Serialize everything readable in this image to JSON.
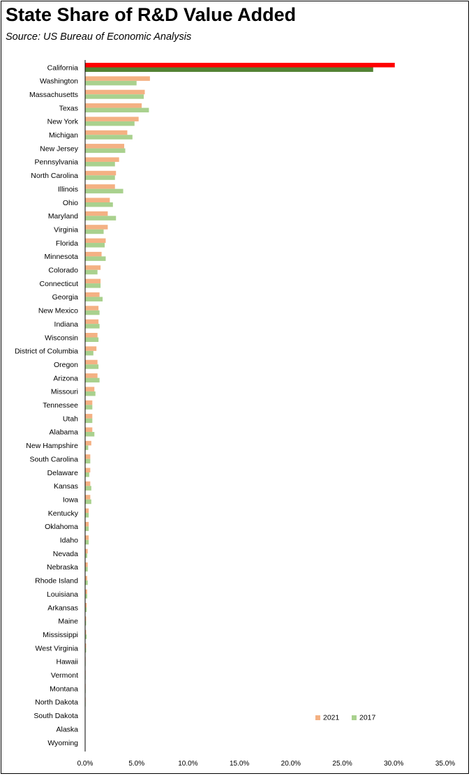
{
  "colors": {
    "s2021": "#f4b183",
    "s2017": "#a9d18e",
    "ca2021": "#ff0000",
    "ca2017": "#548235",
    "axis": "#000000"
  },
  "chart_data": {
    "type": "bar",
    "orientation": "horizontal",
    "title": "State Share of R&D Value Added",
    "subtitle": "Source:  US Bureau of Economic Analysis",
    "xlim": [
      0,
      35
    ],
    "x_ticks": [
      "0.0%",
      "5.0%",
      "10.0%",
      "15.0%",
      "20.0%",
      "25.0%",
      "30.0%",
      "35.0%"
    ],
    "x_tick_values": [
      0,
      5,
      10,
      15,
      20,
      25,
      30,
      35
    ],
    "grid": false,
    "legend_position": "bottom-right",
    "categories": [
      "California",
      "Washington",
      "Massachusetts",
      "Texas",
      "New York",
      "Michigan",
      "New Jersey",
      "Pennsylvania",
      "North Carolina",
      "Illinois",
      "Ohio",
      "Maryland",
      "Virginia",
      "Florida",
      "Minnesota",
      "Colorado",
      "Connecticut",
      "Georgia",
      "New Mexico",
      "Indiana",
      "Wisconsin",
      "District of Columbia",
      "Oregon",
      "Arizona",
      "Missouri",
      "Tennessee",
      "Utah",
      "Alabama",
      "New Hampshire",
      "South Carolina",
      "Delaware",
      "Kansas",
      "Iowa",
      "Kentucky",
      "Oklahoma",
      "Idaho",
      "Nevada",
      "Nebraska",
      "Rhode Island",
      "Louisiana",
      "Arkansas",
      "Maine",
      "Mississippi",
      "West Virginia",
      "Hawaii",
      "Vermont",
      "Montana",
      "North Dakota",
      "South Dakota",
      "Alaska",
      "Wyoming"
    ],
    "series": [
      {
        "name": "2021",
        "values": [
          30.1,
          6.3,
          5.8,
          5.5,
          5.2,
          4.1,
          3.8,
          3.3,
          3.0,
          2.9,
          2.4,
          2.2,
          2.2,
          2.0,
          1.6,
          1.5,
          1.5,
          1.4,
          1.3,
          1.3,
          1.2,
          1.1,
          1.2,
          1.2,
          0.9,
          0.7,
          0.7,
          0.7,
          0.6,
          0.5,
          0.5,
          0.5,
          0.5,
          0.35,
          0.35,
          0.35,
          0.25,
          0.25,
          0.2,
          0.2,
          0.15,
          0.1,
          0.1,
          0.1,
          0.05,
          0.05,
          0.05,
          0.05,
          0.03,
          0.03,
          0.03
        ]
      },
      {
        "name": "2017",
        "values": [
          28.0,
          5.0,
          5.7,
          6.2,
          4.8,
          4.6,
          3.9,
          2.9,
          2.9,
          3.7,
          2.7,
          3.0,
          1.8,
          1.9,
          2.0,
          1.2,
          1.5,
          1.7,
          1.4,
          1.4,
          1.3,
          0.8,
          1.3,
          1.4,
          1.0,
          0.7,
          0.7,
          0.9,
          0.3,
          0.5,
          0.4,
          0.6,
          0.6,
          0.35,
          0.35,
          0.35,
          0.2,
          0.25,
          0.25,
          0.2,
          0.15,
          0.1,
          0.15,
          0.1,
          0.05,
          0.05,
          0.05,
          0.05,
          0.03,
          0.03,
          0.03
        ]
      }
    ]
  }
}
